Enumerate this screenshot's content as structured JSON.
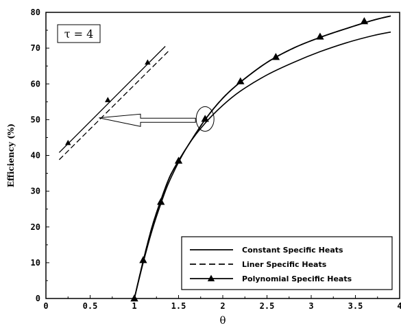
{
  "chart_data": {
    "type": "line",
    "annotation": "τ = 4",
    "xlabel": "θ",
    "ylabel": "Efficiency (%)",
    "xlim": [
      0,
      4
    ],
    "ylim": [
      0,
      80
    ],
    "xticks": [
      {
        "v": 0,
        "label": "0"
      },
      {
        "v": 0.5,
        "label": "0.5"
      },
      {
        "v": 1,
        "label": "1"
      },
      {
        "v": 1.5,
        "label": "1.5"
      },
      {
        "v": 2,
        "label": "2"
      },
      {
        "v": 2.5,
        "label": "2.5"
      },
      {
        "v": 3,
        "label": "3"
      },
      {
        "v": 3.5,
        "label": "3.5"
      },
      {
        "v": 4,
        "label": "4"
      }
    ],
    "yticks": [
      {
        "v": 0,
        "label": "0"
      },
      {
        "v": 10,
        "label": "10"
      },
      {
        "v": 20,
        "label": "20"
      },
      {
        "v": 30,
        "label": "30"
      },
      {
        "v": 40,
        "label": "40"
      },
      {
        "v": 50,
        "label": "50"
      },
      {
        "v": 60,
        "label": "60"
      },
      {
        "v": 70,
        "label": "70"
      },
      {
        "v": 80,
        "label": "80"
      }
    ],
    "grid": false,
    "legend_position": "bottom-right",
    "series": [
      {
        "name": "Constant Specific Heats",
        "style": "solid",
        "marker": "none",
        "x": [
          1.0,
          1.1,
          1.2,
          1.3,
          1.4,
          1.6,
          1.8,
          2.0,
          2.2,
          2.5,
          2.8,
          3.1,
          3.4,
          3.7,
          3.9
        ],
        "y": [
          0,
          10.0,
          19.0,
          26.5,
          33.0,
          42.5,
          49.0,
          54.0,
          58.0,
          62.5,
          66.0,
          69.0,
          71.5,
          73.5,
          74.5
        ]
      },
      {
        "name": "Liner Specific Heats",
        "style": "dashed",
        "marker": "none",
        "x": [
          1.0,
          1.1,
          1.2,
          1.3,
          1.4,
          1.5,
          1.6,
          1.8,
          2.0,
          2.2,
          2.5,
          2.8,
          3.1,
          3.4,
          3.7,
          3.9
        ],
        "y": [
          0,
          10.5,
          20.0,
          27.5,
          34.0,
          38.5,
          42.5,
          50.0,
          56.0,
          60.5,
          66.0,
          70.0,
          73.0,
          75.5,
          77.8,
          79.0
        ]
      },
      {
        "name": "Polynomial Specific Heats",
        "style": "solid",
        "marker": "triangle",
        "x": [
          1.0,
          1.1,
          1.2,
          1.3,
          1.4,
          1.5,
          1.6,
          1.8,
          2.0,
          2.2,
          2.5,
          2.8,
          3.1,
          3.4,
          3.7,
          3.9
        ],
        "y": [
          0,
          10.5,
          20.0,
          27.5,
          34.0,
          38.5,
          42.5,
          50.0,
          56.0,
          60.5,
          66.0,
          70.0,
          73.0,
          75.5,
          77.8,
          79.0
        ],
        "marker_x": [
          1.0,
          1.1,
          1.3,
          1.5,
          1.8,
          2.2,
          2.6,
          3.1,
          3.6
        ],
        "marker_y": [
          0,
          10.7,
          27.0,
          38.5,
          50.2,
          60.7,
          67.5,
          73.2,
          77.5
        ]
      }
    ],
    "inset": {
      "description_none": "",
      "series": [
        {
          "name": "Constant Specific Heats",
          "style": "solid",
          "x": [
            0.15,
            1.35
          ],
          "y": [
            40.8,
            70.5
          ]
        },
        {
          "name": "Liner Specific Heats",
          "style": "dashed",
          "x": [
            0.15,
            1.4
          ],
          "y": [
            38.8,
            69.5
          ]
        },
        {
          "name": "Polynomial Specific Heats",
          "style": "solid",
          "marker": "triangle",
          "marker_x": [
            0.25,
            0.7,
            1.15
          ],
          "marker_y": [
            43.5,
            55.5,
            66.0
          ]
        }
      ]
    }
  }
}
